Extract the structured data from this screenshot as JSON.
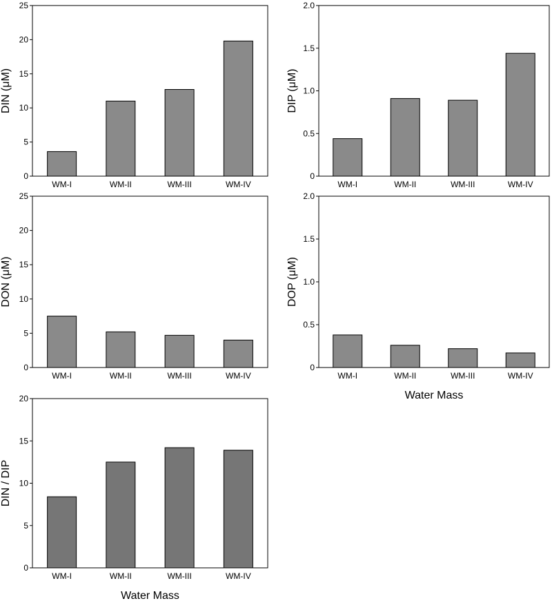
{
  "chart_data": [
    {
      "type": "bar",
      "categories": [
        "WM-I",
        "WM-II",
        "WM-III",
        "WM-IV"
      ],
      "values": [
        3.6,
        11.0,
        12.7,
        19.8
      ],
      "ylabel": "DIN (μM)",
      "xlabel": "",
      "ylim": [
        0,
        25
      ],
      "yticks": [
        0,
        5,
        10,
        15,
        20,
        25
      ],
      "ytick_labels": [
        "0",
        "5",
        "10",
        "15",
        "20",
        "25"
      ],
      "bar_color": "#8a8a8a",
      "grid": false
    },
    {
      "type": "bar",
      "categories": [
        "WM-I",
        "WM-II",
        "WM-III",
        "WM-IV"
      ],
      "values": [
        0.44,
        0.91,
        0.89,
        1.44
      ],
      "ylabel": "DIP (μM)",
      "xlabel": "",
      "ylim": [
        0,
        2.0
      ],
      "yticks": [
        0,
        0.5,
        1.0,
        1.5,
        2.0
      ],
      "ytick_labels": [
        "0",
        "0.5",
        "1.0",
        "1.5",
        "2.0"
      ],
      "bar_color": "#8a8a8a",
      "grid": false
    },
    {
      "type": "bar",
      "categories": [
        "WM-I",
        "WM-II",
        "WM-III",
        "WM-IV"
      ],
      "values": [
        7.5,
        5.2,
        4.7,
        4.0
      ],
      "ylabel": "DON (μM)",
      "xlabel": "",
      "ylim": [
        0,
        25
      ],
      "yticks": [
        0,
        5,
        10,
        15,
        20,
        25
      ],
      "ytick_labels": [
        "0",
        "5",
        "10",
        "15",
        "20",
        "25"
      ],
      "bar_color": "#8a8a8a",
      "grid": false
    },
    {
      "type": "bar",
      "categories": [
        "WM-I",
        "WM-II",
        "WM-III",
        "WM-IV"
      ],
      "values": [
        0.38,
        0.26,
        0.22,
        0.17
      ],
      "ylabel": "DOP (μM)",
      "xlabel": "Water Mass",
      "ylim": [
        0,
        2.0
      ],
      "yticks": [
        0,
        0.5,
        1.0,
        1.5,
        2.0
      ],
      "ytick_labels": [
        "0",
        "0.5",
        "1.0",
        "1.5",
        "2.0"
      ],
      "bar_color": "#8a8a8a",
      "grid": false
    },
    {
      "type": "bar",
      "categories": [
        "WM-I",
        "WM-II",
        "WM-III",
        "WM-IV"
      ],
      "values": [
        8.4,
        12.5,
        14.2,
        13.9
      ],
      "ylabel": "DIN / DIP",
      "xlabel": "Water Mass",
      "ylim": [
        0,
        20
      ],
      "yticks": [
        0,
        5,
        10,
        15,
        20
      ],
      "ytick_labels": [
        "0",
        "5",
        "10",
        "15",
        "20"
      ],
      "bar_color": "#767676",
      "grid": false
    }
  ]
}
